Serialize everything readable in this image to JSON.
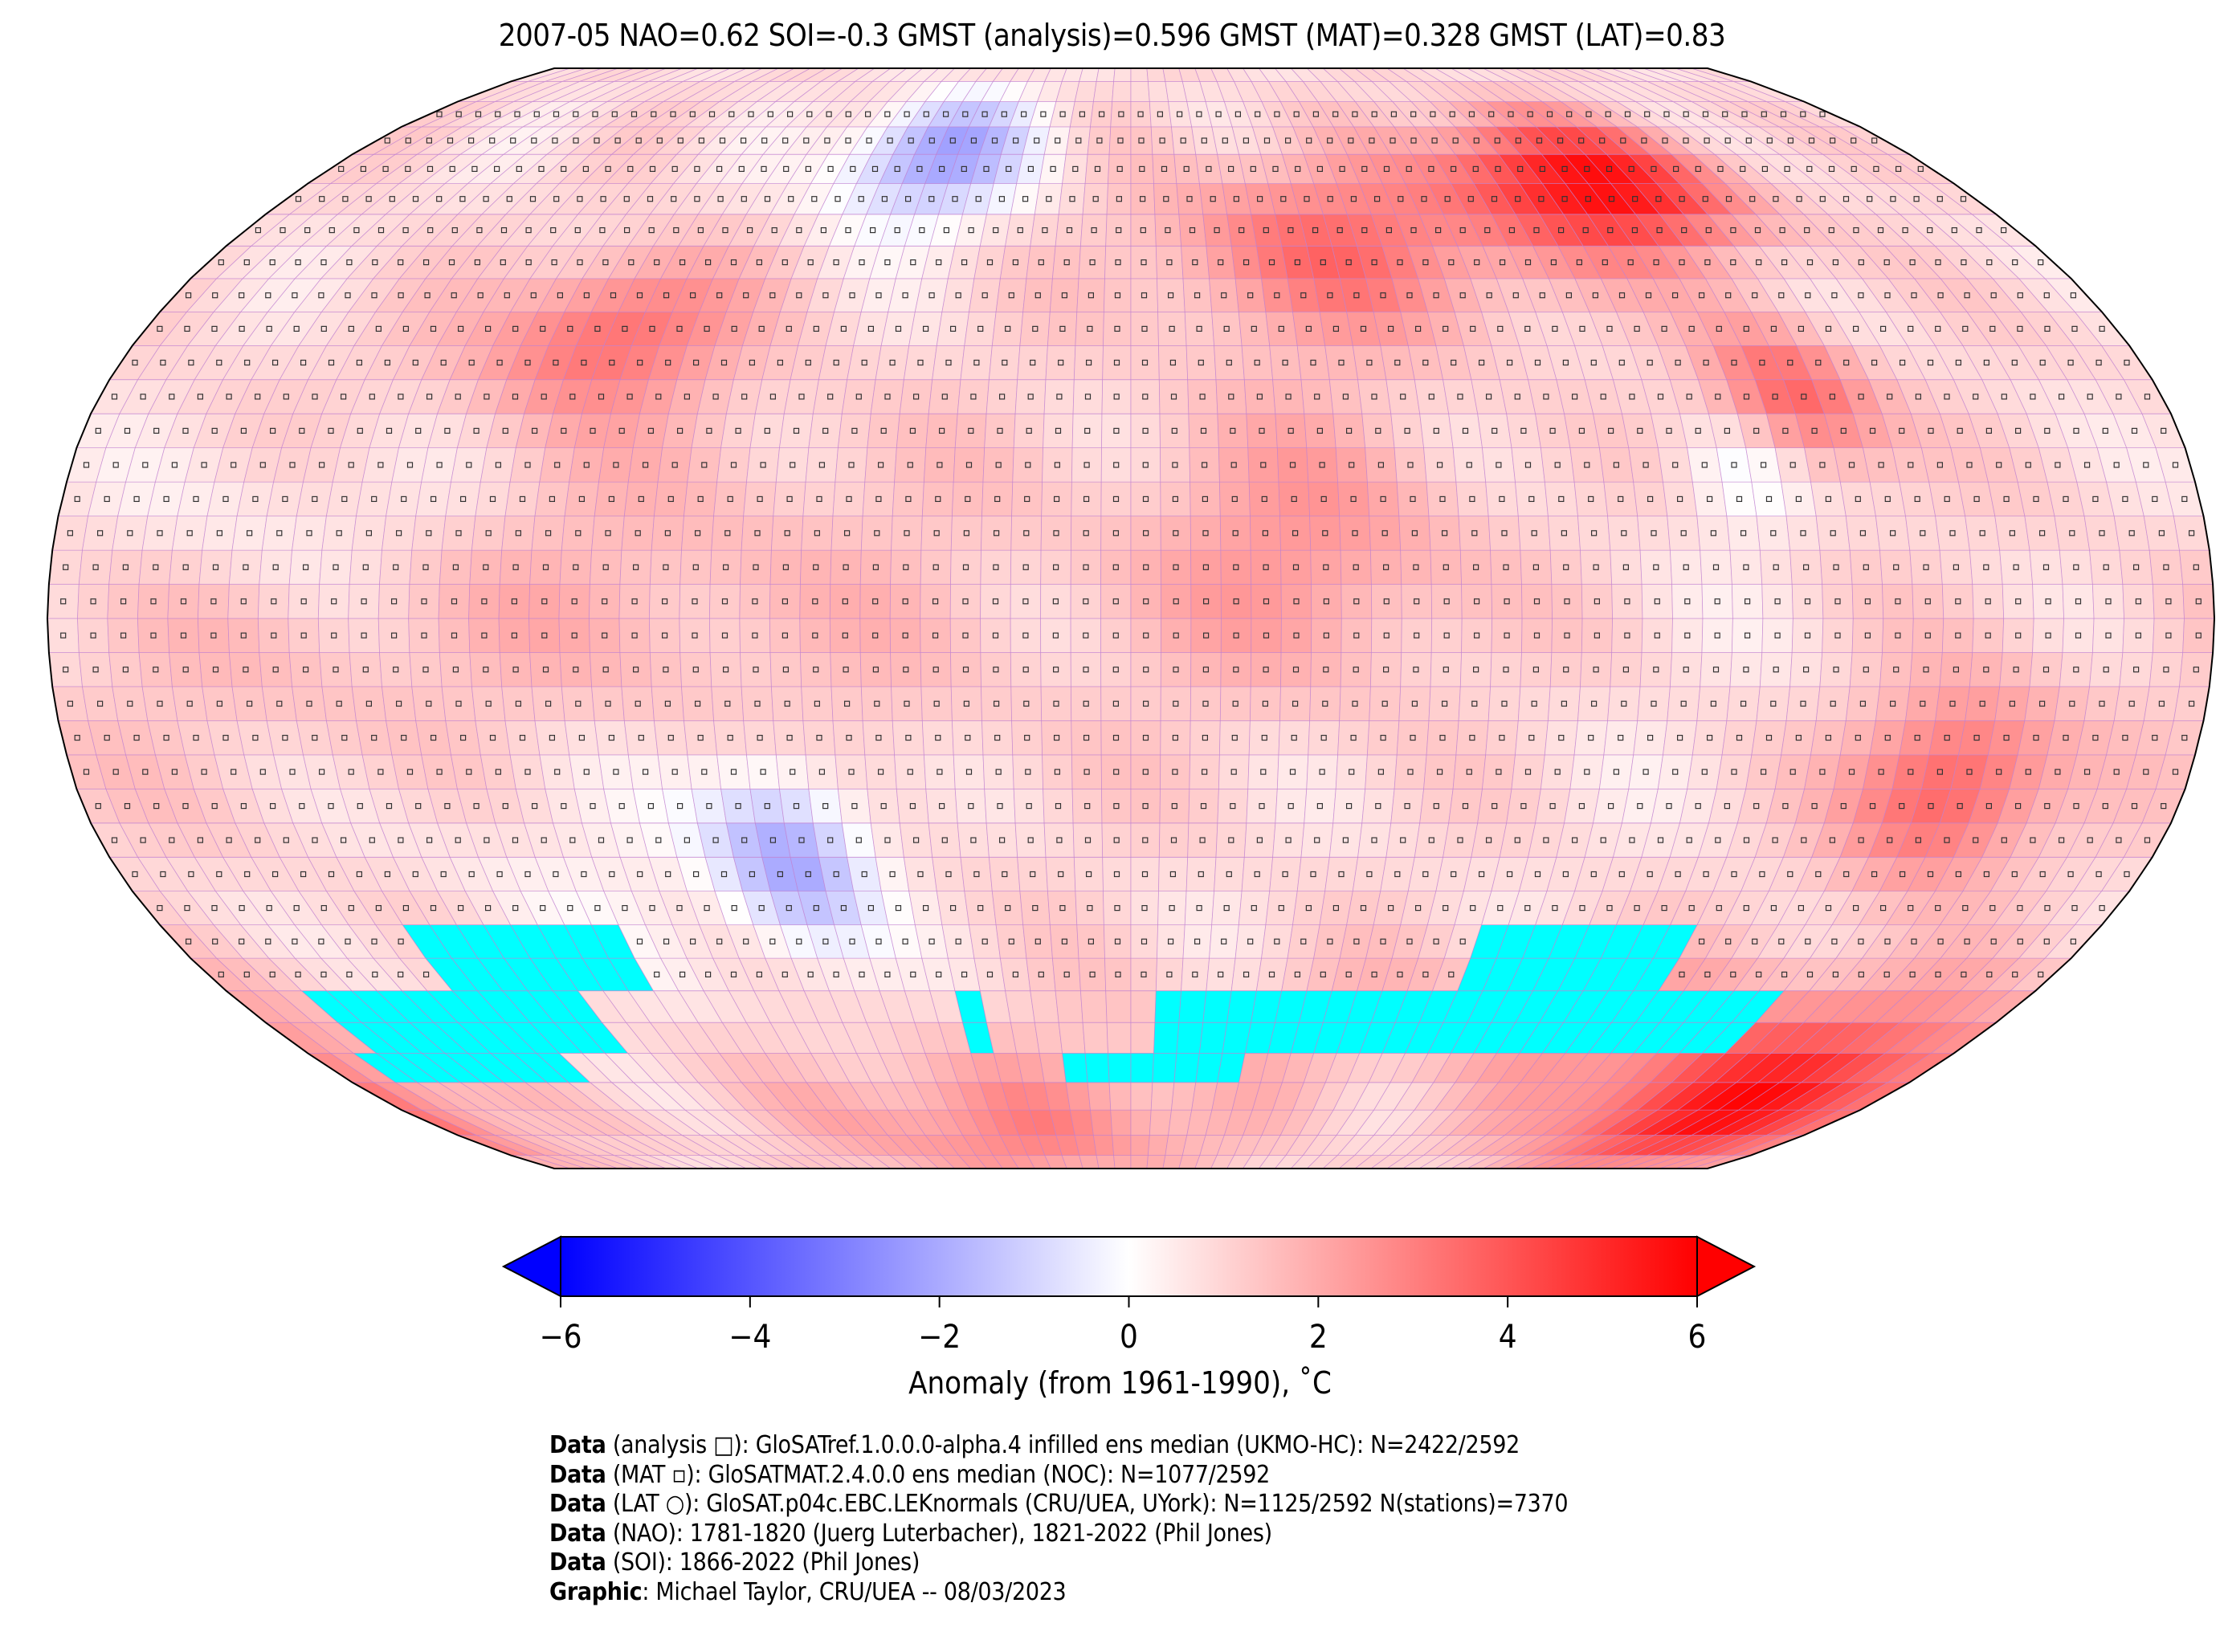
{
  "title": "2007-05 NAO=0.62 SOI=-0.3 GMST (analysis)=0.596 GMST (MAT)=0.328 GMST (LAT)=0.83",
  "map": {
    "projection": "Robinson",
    "grid_resolution_deg": 5,
    "missing_color": "#00ffff",
    "grid_line_color": "#c080d0"
  },
  "colorbar": {
    "label": "Anomaly (from 1961-1990), ˚C",
    "ticks": [
      "−6",
      "−4",
      "−2",
      "0",
      "2",
      "4",
      "6"
    ],
    "tick_values": [
      -6,
      -4,
      -2,
      0,
      2,
      4,
      6
    ],
    "range": [
      -6,
      6
    ],
    "colormap": "bwr",
    "low_color": "#0000ff",
    "mid_color": "#ffffff",
    "high_color": "#ff0000",
    "extend": "both"
  },
  "credits": [
    {
      "bold": "Data",
      "text": " (analysis □): GloSATref.1.0.0.0-alpha.4 infilled ens median (UKMO-HC): N=2422/2592"
    },
    {
      "bold": "Data",
      "text": " (MAT ▫): GloSATMAT.2.4.0.0 ens median (NOC): N=1077/2592"
    },
    {
      "bold": "Data",
      "text": " (LAT ○): GloSAT.p04c.EBC.LEKnormals (CRU/UEA, UYork): N=1125/2592 N(stations)=7370"
    },
    {
      "bold": "Data",
      "text": " (NAO): 1781-1820 (Juerg Luterbacher), 1821-2022 (Phil Jones)"
    },
    {
      "bold": "Data",
      "text": " (SOI): 1866-2022 (Phil Jones)"
    },
    {
      "bold": "Graphic",
      "text": ": Michael Taylor, CRU/UEA -- 08/03/2023"
    }
  ]
}
